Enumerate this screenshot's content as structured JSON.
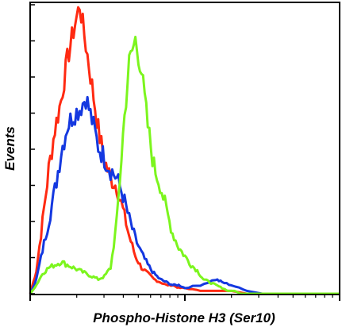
{
  "chart_data": {
    "type": "line",
    "title": "",
    "xlabel": "Phospho-Histone H3 (Ser10)",
    "ylabel": "Events",
    "xscale": "log",
    "xlim": [
      0,
      100
    ],
    "ylim": [
      0,
      100
    ],
    "grid": false,
    "legend": "none",
    "series": [
      {
        "color": "#ff2a12",
        "x": [
          0,
          2,
          4,
          6,
          8,
          10,
          12,
          14,
          16,
          18,
          20,
          22,
          24,
          26,
          28,
          30,
          32,
          34,
          36,
          38,
          40,
          42,
          44,
          46,
          48,
          50,
          55,
          60,
          65,
          70,
          75,
          80,
          85,
          90,
          95,
          100
        ],
        "y": [
          0,
          8,
          25,
          43,
          57,
          67,
          81,
          91,
          100,
          86,
          72,
          57,
          46,
          40,
          37,
          29,
          20,
          13,
          9,
          7,
          5,
          4,
          3,
          3,
          2,
          2,
          1,
          1,
          1,
          0,
          0,
          0,
          0,
          0,
          0,
          0
        ]
      },
      {
        "color": "#1438e0",
        "x": [
          0,
          2,
          4,
          6,
          8,
          10,
          12,
          14,
          16,
          18,
          20,
          22,
          24,
          26,
          28,
          30,
          32,
          34,
          36,
          38,
          40,
          42,
          44,
          46,
          48,
          50,
          55,
          60,
          62,
          65,
          70,
          75,
          80,
          85,
          90,
          95,
          100
        ],
        "y": [
          0,
          5,
          15,
          25,
          36,
          49,
          58,
          62,
          64,
          68,
          60,
          51,
          47,
          43,
          40,
          34,
          26,
          19,
          14,
          10,
          7,
          5,
          4,
          3,
          3,
          2,
          3,
          5,
          4,
          3,
          1,
          0,
          0,
          0,
          0,
          0,
          0
        ]
      },
      {
        "color": "#7cf51e",
        "x": [
          0,
          2,
          4,
          6,
          8,
          10,
          12,
          14,
          16,
          18,
          20,
          22,
          24,
          26,
          28,
          30,
          32,
          34,
          36,
          38,
          40,
          42,
          44,
          46,
          48,
          50,
          52,
          54,
          56,
          58,
          60,
          62,
          64,
          66,
          68,
          70,
          75,
          80,
          85,
          90,
          95,
          100
        ],
        "y": [
          0,
          3,
          7,
          9,
          10,
          11,
          10,
          9,
          8,
          7,
          6,
          5,
          6,
          9,
          25,
          55,
          80,
          88,
          77,
          58,
          44,
          38,
          29,
          21,
          16,
          13,
          10,
          8,
          5,
          4,
          3,
          2,
          1,
          1,
          0,
          0,
          0,
          0,
          0,
          0,
          0,
          0
        ]
      }
    ]
  }
}
